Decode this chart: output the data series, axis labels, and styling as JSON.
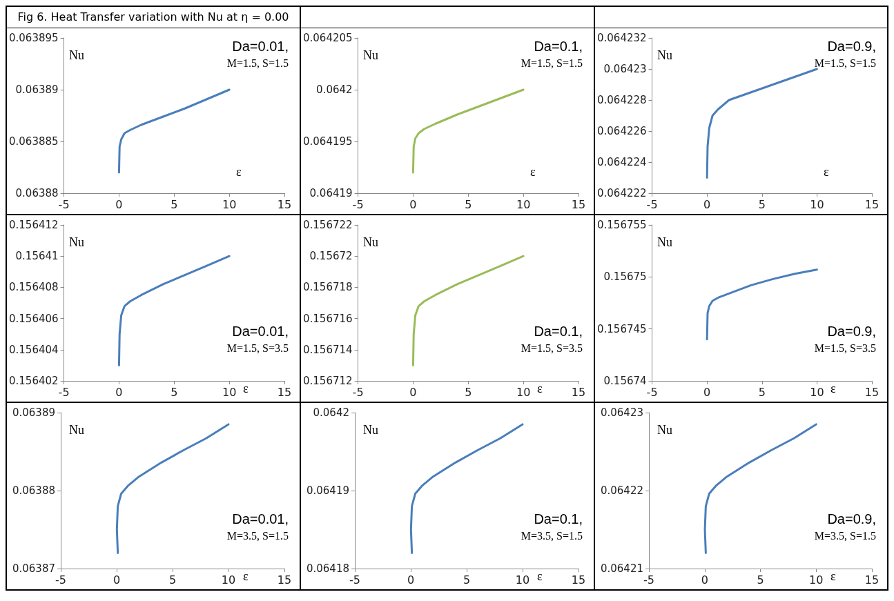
{
  "chart_data": [
    {
      "type": "line",
      "title": "Fig 6. Heat Transfer variation with Nu   at  η = 0.00",
      "xlabel": "ε",
      "ylabel": "Nu",
      "annotations": [
        "Da=0.01,",
        "M=1.5, S=1.5"
      ],
      "x": [
        0,
        0.05,
        0.2,
        0.5,
        1,
        2,
        4,
        6,
        8,
        10
      ],
      "series": [
        {
          "color": "#4a7ebb",
          "values": [
            0.063882,
            0.0638845,
            0.0638852,
            0.0638858,
            0.0638861,
            0.0638866,
            0.0638874,
            0.0638882,
            0.0638891,
            0.06389
          ]
        }
      ],
      "xlim": [
        -5,
        15
      ],
      "xticks": [
        -5,
        0,
        5,
        10,
        15
      ],
      "ylim": [
        0.06388,
        0.063895
      ],
      "yticks": [
        0.06388,
        0.063885,
        0.06389,
        0.063895
      ],
      "marker": "none",
      "line_style": "solid"
    },
    {
      "type": "line",
      "xlabel": "ε",
      "ylabel": "Nu",
      "annotations": [
        "Da=0.1,",
        "M=1.5, S=1.5"
      ],
      "x": [
        0,
        0.05,
        0.2,
        0.5,
        1,
        2,
        4,
        6,
        8,
        10
      ],
      "series": [
        {
          "color": "#9bbb59",
          "values": [
            0.064192,
            0.0641945,
            0.0641953,
            0.0641958,
            0.0641962,
            0.0641967,
            0.0641976,
            0.0641984,
            0.0641992,
            0.0642
          ]
        }
      ],
      "xlim": [
        -5,
        15
      ],
      "xticks": [
        -5,
        0,
        5,
        10,
        15
      ],
      "ylim": [
        0.06419,
        0.064205
      ],
      "yticks": [
        0.06419,
        0.064195,
        0.0642,
        0.064205
      ],
      "marker": "none",
      "line_style": "solid"
    },
    {
      "type": "line",
      "xlabel": "ε",
      "ylabel": "Nu",
      "annotations": [
        "Da=0.9,",
        "M=1.5, S=1.5"
      ],
      "x": [
        0,
        0.05,
        0.2,
        0.5,
        1,
        2,
        4,
        6,
        8,
        10
      ],
      "series": [
        {
          "color": "#4a7ebb",
          "values": [
            0.064223,
            0.064225,
            0.0642262,
            0.064227,
            0.0642274,
            0.064228,
            0.0642285,
            0.064229,
            0.0642295,
            0.06423
          ]
        }
      ],
      "xlim": [
        -5,
        15
      ],
      "xticks": [
        -5,
        0,
        5,
        10,
        15
      ],
      "ylim": [
        0.064222,
        0.064232
      ],
      "yticks": [
        0.064222,
        0.064224,
        0.064226,
        0.064228,
        0.06423,
        0.064232
      ],
      "marker": "none",
      "line_style": "solid"
    },
    {
      "type": "line",
      "xlabel": "ε",
      "ylabel": "Nu",
      "annotations": [
        "Da=0.01,",
        "M=1.5, S=3.5"
      ],
      "x": [
        0,
        0.05,
        0.2,
        0.5,
        1,
        2,
        4,
        6,
        8,
        10
      ],
      "series": [
        {
          "color": "#4a7ebb",
          "values": [
            0.156403,
            0.156405,
            0.1564062,
            0.1564068,
            0.1564071,
            0.1564075,
            0.1564082,
            0.1564088,
            0.1564094,
            0.15641
          ]
        }
      ],
      "xlim": [
        -5,
        15
      ],
      "xticks": [
        -5,
        0,
        5,
        10,
        15
      ],
      "ylim": [
        0.156402,
        0.156412
      ],
      "yticks": [
        0.156402,
        0.156404,
        0.156406,
        0.156408,
        0.15641,
        0.156412
      ],
      "marker": "none",
      "line_style": "solid"
    },
    {
      "type": "line",
      "xlabel": "ε",
      "ylabel": "Nu",
      "annotations": [
        "Da=0.1,",
        "M=1.5, S=3.5"
      ],
      "x": [
        0,
        0.05,
        0.2,
        0.5,
        1,
        2,
        4,
        6,
        8,
        10
      ],
      "series": [
        {
          "color": "#9bbb59",
          "values": [
            0.156713,
            0.156715,
            0.1567162,
            0.1567168,
            0.1567171,
            0.1567175,
            0.1567182,
            0.1567188,
            0.1567194,
            0.15672
          ]
        }
      ],
      "xlim": [
        -5,
        15
      ],
      "xticks": [
        -5,
        0,
        5,
        10,
        15
      ],
      "ylim": [
        0.156712,
        0.156722
      ],
      "yticks": [
        0.156712,
        0.156714,
        0.156716,
        0.156718,
        0.15672,
        0.156722
      ],
      "marker": "none",
      "line_style": "solid"
    },
    {
      "type": "line",
      "xlabel": "ε",
      "ylabel": "Nu",
      "annotations": [
        "Da=0.9,",
        "M=1.5, S=3.5"
      ],
      "x": [
        0,
        0.05,
        0.2,
        0.5,
        1,
        2,
        4,
        6,
        8,
        10
      ],
      "series": [
        {
          "color": "#4a7ebb",
          "values": [
            0.156744,
            0.1567465,
            0.1567472,
            0.1567477,
            0.156748,
            0.1567484,
            0.1567492,
            0.1567498,
            0.1567503,
            0.1567507
          ]
        }
      ],
      "xlim": [
        -5,
        15
      ],
      "xticks": [
        -5,
        0,
        5,
        10,
        15
      ],
      "ylim": [
        0.15674,
        0.156755
      ],
      "yticks": [
        0.15674,
        0.156745,
        0.15675,
        0.156755
      ],
      "marker": "none",
      "line_style": "solid"
    },
    {
      "type": "line",
      "xlabel": "ε",
      "ylabel": "Nu",
      "annotations": [
        "Da=0.01,",
        "M=3.5, S=1.5"
      ],
      "x": [
        0.1,
        0.02,
        0.1,
        0.4,
        1,
        2,
        4,
        6,
        8,
        10
      ],
      "series": [
        {
          "color": "#4a7ebb",
          "values": [
            0.063872,
            0.063875,
            0.063878,
            0.0638796,
            0.0638806,
            0.0638818,
            0.0638836,
            0.0638852,
            0.0638867,
            0.0638885
          ]
        }
      ],
      "xlim": [
        -5,
        15
      ],
      "xticks": [
        -5,
        0,
        5,
        10,
        15
      ],
      "ylim": [
        0.06387,
        0.06389
      ],
      "yticks": [
        0.06387,
        0.06388,
        0.06389
      ],
      "marker": "none",
      "line_style": "solid"
    },
    {
      "type": "line",
      "xlabel": "ε",
      "ylabel": "Nu",
      "annotations": [
        "Da=0.1,",
        "M=3.5, S=1.5"
      ],
      "x": [
        0.1,
        0.02,
        0.1,
        0.4,
        1,
        2,
        4,
        6,
        8,
        10
      ],
      "series": [
        {
          "color": "#4a7ebb",
          "values": [
            0.064182,
            0.064185,
            0.064188,
            0.0641896,
            0.0641906,
            0.0641918,
            0.0641936,
            0.0641952,
            0.0641967,
            0.0641985
          ]
        }
      ],
      "xlim": [
        -5,
        15
      ],
      "xticks": [
        -5,
        0,
        5,
        10,
        15
      ],
      "ylim": [
        0.06418,
        0.0642
      ],
      "yticks": [
        0.06418,
        0.06419,
        0.0642
      ],
      "marker": "none",
      "line_style": "solid"
    },
    {
      "type": "line",
      "xlabel": "ε",
      "ylabel": "Nu",
      "annotations": [
        "Da=0.9,",
        "M=3.5, S=1.5"
      ],
      "x": [
        0.1,
        0.02,
        0.1,
        0.4,
        1,
        2,
        4,
        6,
        8,
        10
      ],
      "series": [
        {
          "color": "#4a7ebb",
          "values": [
            0.064212,
            0.064215,
            0.064218,
            0.0642196,
            0.0642206,
            0.0642218,
            0.0642236,
            0.0642252,
            0.0642267,
            0.0642285
          ]
        }
      ],
      "xlim": [
        -5,
        15
      ],
      "xticks": [
        -5,
        0,
        5,
        10,
        15
      ],
      "ylim": [
        0.06421,
        0.06423
      ],
      "yticks": [
        0.06421,
        0.06422,
        0.06423
      ],
      "marker": "none",
      "line_style": "solid"
    }
  ]
}
